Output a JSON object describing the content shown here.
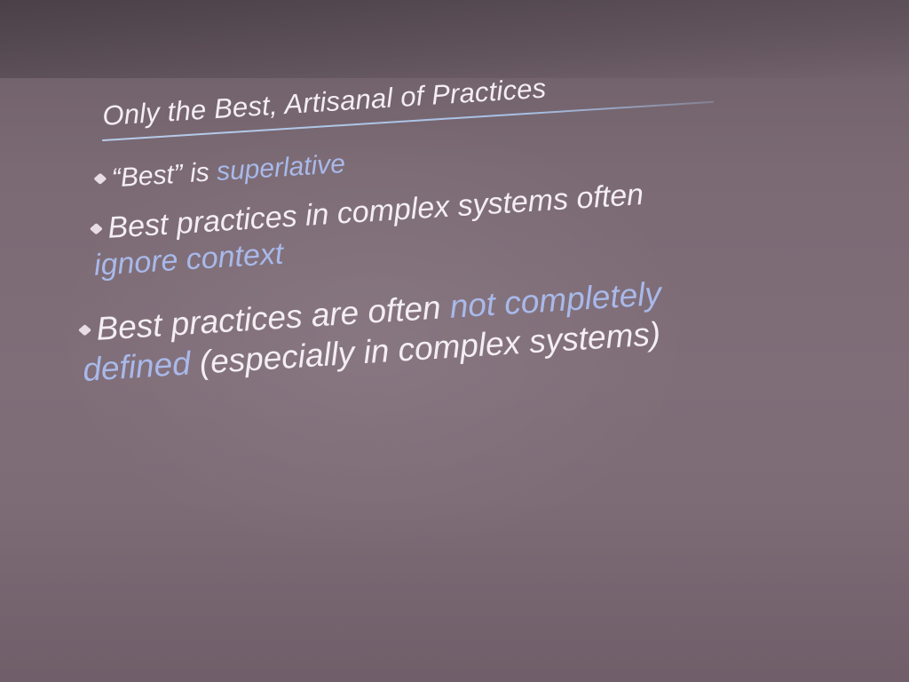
{
  "slide": {
    "title": "Only the Best, Artisanal of Practices",
    "bullets": [
      {
        "prefix": "“Best” is ",
        "accent": "superlative",
        "suffix": ""
      },
      {
        "line1": "Best practices in complex systems often",
        "accent": "ignore context"
      },
      {
        "prefix": "Best practices are often ",
        "accent_line1": "not completely",
        "accent_line2": "defined",
        "suffix": " (especially in complex systems)"
      }
    ]
  },
  "colors": {
    "background": "#7b6a74",
    "text": "#f4eef2",
    "accent": "#a9b9ea",
    "rule": "#b8cdea"
  }
}
